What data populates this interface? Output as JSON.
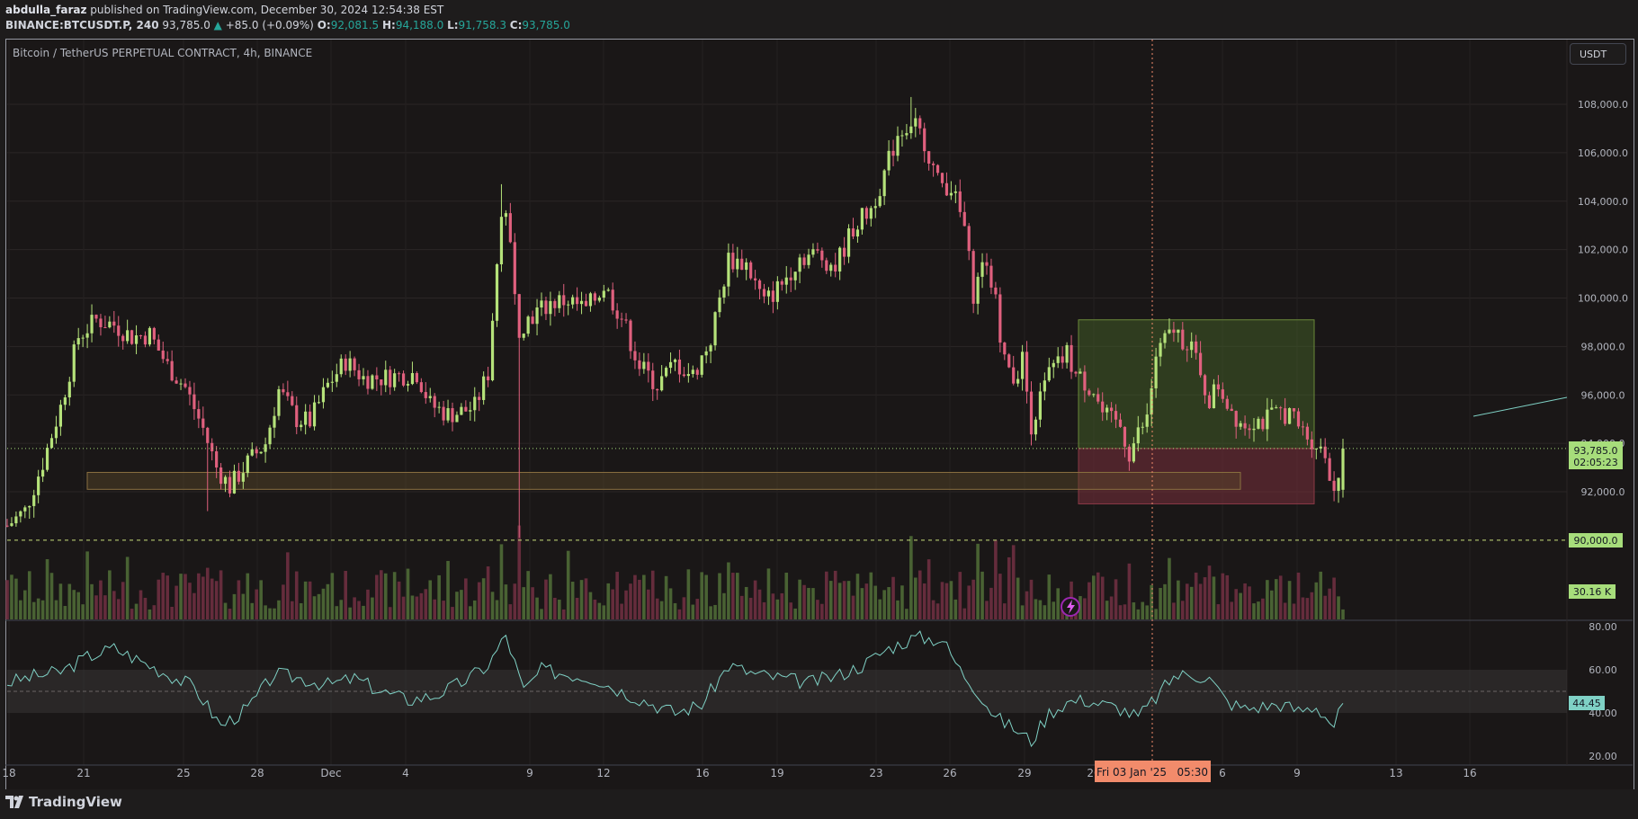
{
  "header": {
    "author": "abdulla_faraz",
    "published_text": "published on TradingView.com, December 30, 2024 12:54:38 EST",
    "symbol": "BINANCE:BTCUSDT.P, 240",
    "last": "93,785.0",
    "change": "+85.0 (+0.09%)",
    "open_label": "O:",
    "open": "92,081.5",
    "high_label": "H:",
    "high": "94,188.0",
    "low_label": "L:",
    "low": "91,758.3",
    "close_label": "C:",
    "close": "93,785.0"
  },
  "legend": {
    "title": "Bitcoin / TetherUS PERPETUAL CONTRACT, 4h, BINANCE"
  },
  "currency_button": "USDT",
  "footer": {
    "logo_text": "TradingView"
  },
  "colors": {
    "up": "#b5e27a",
    "down": "#e0607e",
    "rsi_line": "#7fd1c5",
    "price_label_bg": "#a7dd7b",
    "time_label_bg": "#f28b6b"
  },
  "chart_data": [
    {
      "type": "candlestick",
      "title": "Bitcoin / TetherUS PERPETUAL CONTRACT, 4h, BINANCE",
      "x_tick_labels": [
        "18",
        "21",
        "25",
        "28",
        "Dec",
        "4",
        "9",
        "12",
        "16",
        "19",
        "23",
        "26",
        "29",
        "20",
        "6",
        "9",
        "13",
        "16"
      ],
      "y_tick_labels": [
        "92,000.0",
        "94,000.0",
        "96,000.0",
        "98,000.0",
        "100,000.0",
        "102,000.0",
        "104,000.0",
        "106,000.0",
        "108,000.0"
      ],
      "ylim": [
        89000,
        109000
      ],
      "grid": true,
      "price_labels": {
        "last_price": "93,785.0",
        "countdown": "02:05:23",
        "level_line": "90,000.0",
        "volume": "30.16 K"
      },
      "cursor_time_label": "Fri 03 Jan '25   05:30",
      "support_zone": [
        92100,
        92800
      ],
      "position": {
        "entry": 93785,
        "take_profit": 99100,
        "stop_loss": 91500
      },
      "ohlc_last": {
        "open": 92081.5,
        "high": 94188.0,
        "low": 91758.3,
        "close": 93785.0
      },
      "price_path": [
        [
          0,
          90600
        ],
        [
          4,
          91200
        ],
        [
          8,
          93200
        ],
        [
          12,
          95500
        ],
        [
          16,
          98400
        ],
        [
          20,
          99100
        ],
        [
          24,
          98900
        ],
        [
          28,
          98400
        ],
        [
          32,
          98500
        ],
        [
          36,
          97200
        ],
        [
          40,
          96300
        ],
        [
          44,
          94600
        ],
        [
          47,
          93000
        ],
        [
          50,
          92200
        ],
        [
          54,
          93200
        ],
        [
          58,
          94000
        ],
        [
          61,
          96200
        ],
        [
          65,
          95000
        ],
        [
          68,
          94900
        ],
        [
          72,
          96400
        ],
        [
          76,
          97400
        ],
        [
          80,
          96700
        ],
        [
          84,
          96700
        ],
        [
          88,
          96800
        ],
        [
          92,
          96900
        ],
        [
          95,
          95600
        ],
        [
          99,
          95200
        ],
        [
          102,
          95300
        ],
        [
          105,
          95500
        ],
        [
          108,
          96900
        ],
        [
          111,
          103800
        ],
        [
          113,
          102400
        ],
        [
          115,
          98800
        ],
        [
          118,
          99300
        ],
        [
          122,
          99800
        ],
        [
          126,
          99900
        ],
        [
          130,
          99500
        ],
        [
          134,
          100500
        ],
        [
          138,
          99200
        ],
        [
          142,
          97200
        ],
        [
          146,
          96400
        ],
        [
          150,
          97300
        ],
        [
          154,
          96800
        ],
        [
          158,
          98300
        ],
        [
          162,
          101600
        ],
        [
          166,
          101400
        ],
        [
          170,
          99800
        ],
        [
          174,
          100600
        ],
        [
          178,
          101700
        ],
        [
          182,
          101800
        ],
        [
          186,
          101300
        ],
        [
          190,
          102900
        ],
        [
          194,
          103700
        ],
        [
          197,
          105100
        ],
        [
          200,
          106800
        ],
        [
          203,
          107300
        ],
        [
          206,
          106500
        ],
        [
          209,
          104800
        ],
        [
          212,
          104600
        ],
        [
          215,
          102900
        ],
        [
          217,
          100200
        ],
        [
          220,
          101700
        ],
        [
          222,
          99800
        ],
        [
          224,
          97400
        ],
        [
          226,
          96700
        ],
        [
          228,
          97500
        ],
        [
          230,
          94800
        ],
        [
          232,
          95800
        ],
        [
          234,
          96900
        ],
        [
          236,
          97200
        ],
        [
          238,
          97700
        ],
        [
          240,
          96800
        ],
        [
          242,
          96500
        ],
        [
          244,
          96200
        ],
        [
          246,
          95200
        ],
        [
          248,
          94900
        ],
        [
          250,
          94700
        ],
        [
          252,
          93600
        ],
        [
          254,
          94400
        ],
        [
          256,
          95000
        ],
        [
          258,
          97600
        ],
        [
          260,
          98200
        ],
        [
          262,
          98700
        ],
        [
          264,
          98300
        ],
        [
          266,
          98100
        ],
        [
          268,
          96600
        ],
        [
          270,
          95800
        ],
        [
          272,
          96400
        ],
        [
          274,
          95700
        ],
        [
          276,
          95100
        ],
        [
          278,
          94800
        ],
        [
          280,
          95000
        ],
        [
          282,
          94900
        ],
        [
          284,
          95100
        ],
        [
          286,
          95300
        ],
        [
          288,
          95200
        ],
        [
          290,
          94700
        ],
        [
          292,
          94300
        ],
        [
          294,
          94000
        ],
        [
          296,
          93500
        ],
        [
          298,
          92100
        ],
        [
          300,
          93785
        ]
      ]
    },
    {
      "type": "line",
      "title": "",
      "y_tick_labels": [
        "20.00",
        "40.00",
        "60.00",
        "80.00"
      ],
      "ylim": [
        18,
        82
      ],
      "band": [
        40,
        60
      ],
      "last_value_label": "44.45",
      "rsi_path": [
        [
          0,
          54
        ],
        [
          6,
          57
        ],
        [
          12,
          59
        ],
        [
          18,
          66
        ],
        [
          24,
          70
        ],
        [
          30,
          64
        ],
        [
          36,
          58
        ],
        [
          42,
          52
        ],
        [
          48,
          34
        ],
        [
          54,
          42
        ],
        [
          60,
          58
        ],
        [
          66,
          56
        ],
        [
          72,
          53
        ],
        [
          78,
          56
        ],
        [
          84,
          50
        ],
        [
          90,
          46
        ],
        [
          96,
          48
        ],
        [
          102,
          54
        ],
        [
          108,
          62
        ],
        [
          112,
          76
        ],
        [
          116,
          50
        ],
        [
          120,
          60
        ],
        [
          126,
          58
        ],
        [
          132,
          56
        ],
        [
          138,
          50
        ],
        [
          144,
          45
        ],
        [
          150,
          40
        ],
        [
          156,
          44
        ],
        [
          162,
          62
        ],
        [
          168,
          58
        ],
        [
          174,
          56
        ],
        [
          180,
          54
        ],
        [
          186,
          57
        ],
        [
          192,
          62
        ],
        [
          198,
          70
        ],
        [
          204,
          75
        ],
        [
          210,
          74
        ],
        [
          214,
          60
        ],
        [
          218,
          50
        ],
        [
          222,
          38
        ],
        [
          226,
          33
        ],
        [
          230,
          27
        ],
        [
          234,
          40
        ],
        [
          238,
          45
        ],
        [
          242,
          46
        ],
        [
          246,
          44
        ],
        [
          250,
          42
        ],
        [
          254,
          38
        ],
        [
          258,
          47
        ],
        [
          262,
          57
        ],
        [
          266,
          58
        ],
        [
          270,
          56
        ],
        [
          274,
          45
        ],
        [
          278,
          42
        ],
        [
          282,
          43
        ],
        [
          286,
          44
        ],
        [
          290,
          41
        ],
        [
          294,
          43
        ],
        [
          298,
          34
        ],
        [
          300,
          44.45
        ]
      ]
    }
  ]
}
